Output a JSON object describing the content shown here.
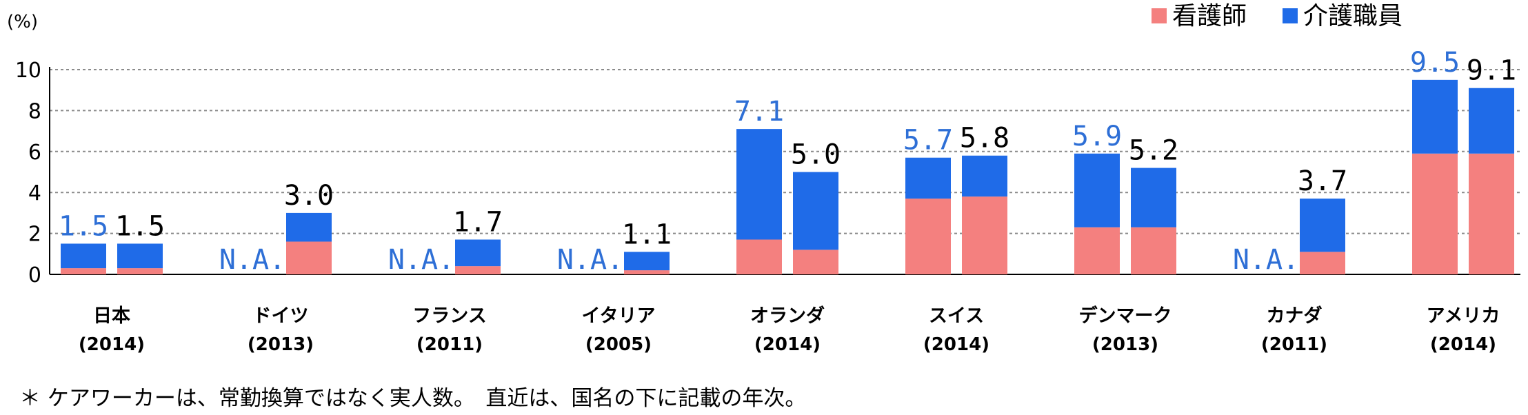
{
  "footnote": "＊ ケアワーカーは、常勤換算ではなく実人数。　直近は、国名の下に記載の年次。",
  "colors": {
    "nurse": "#F4807F",
    "care": "#1F6BE8",
    "label_blue": "#2E6FD6",
    "label_black": "#000000"
  },
  "chart_data": {
    "type": "bar",
    "stacked": true,
    "unit": "(%)",
    "ylim": [
      0,
      10
    ],
    "yticks": [
      0,
      2,
      4,
      6,
      8,
      10
    ],
    "grid": true,
    "legend_position": "top-right",
    "legend": [
      "看護師",
      "介護職員"
    ],
    "groups": [
      {
        "name": "日本",
        "year": "(2014)",
        "bars": [
          {
            "nurse": 0.3,
            "care": 1.2,
            "label": "1.5",
            "label_color": "blue"
          },
          {
            "nurse": 0.3,
            "care": 1.2,
            "label": "1.5",
            "label_color": "black"
          }
        ]
      },
      {
        "name": "ドイツ",
        "year": "(2013)",
        "bars": [
          {
            "na": true,
            "label": "N.A.",
            "label_color": "blue"
          },
          {
            "nurse": 1.6,
            "care": 1.4,
            "label": "3.0",
            "label_color": "black"
          }
        ]
      },
      {
        "name": "フランス",
        "year": "(2011)",
        "bars": [
          {
            "na": true,
            "label": "N.A.",
            "label_color": "blue"
          },
          {
            "nurse": 0.4,
            "care": 1.3,
            "label": "1.7",
            "label_color": "black"
          }
        ]
      },
      {
        "name": "イタリア",
        "year": "(2005)",
        "bars": [
          {
            "na": true,
            "label": "N.A.",
            "label_color": "blue"
          },
          {
            "nurse": 0.2,
            "care": 0.9,
            "label": "1.1",
            "label_color": "black"
          }
        ]
      },
      {
        "name": "オランダ",
        "year": "(2014)",
        "bars": [
          {
            "nurse": 1.7,
            "care": 5.4,
            "label": "7.1",
            "label_color": "blue"
          },
          {
            "nurse": 1.2,
            "care": 3.8,
            "label": "5.0",
            "label_color": "black"
          }
        ]
      },
      {
        "name": "スイス",
        "year": "(2014)",
        "bars": [
          {
            "nurse": 3.7,
            "care": 2.0,
            "label": "5.7",
            "label_color": "blue"
          },
          {
            "nurse": 3.8,
            "care": 2.0,
            "label": "5.8",
            "label_color": "black"
          }
        ]
      },
      {
        "name": "デンマーク",
        "year": "(2013)",
        "bars": [
          {
            "nurse": 2.3,
            "care": 3.6,
            "label": "5.9",
            "label_color": "blue"
          },
          {
            "nurse": 2.3,
            "care": 2.9,
            "label": "5.2",
            "label_color": "black"
          }
        ]
      },
      {
        "name": "カナダ",
        "year": "(2011)",
        "bars": [
          {
            "na": true,
            "label": "N.A.",
            "label_color": "blue"
          },
          {
            "nurse": 1.1,
            "care": 2.6,
            "label": "3.7",
            "label_color": "black"
          }
        ]
      },
      {
        "name": "アメリカ",
        "year": "(2014)",
        "bars": [
          {
            "nurse": 5.9,
            "care": 3.6,
            "label": "9.5",
            "label_color": "blue"
          },
          {
            "nurse": 5.9,
            "care": 3.2,
            "label": "9.1",
            "label_color": "black"
          }
        ]
      }
    ]
  }
}
